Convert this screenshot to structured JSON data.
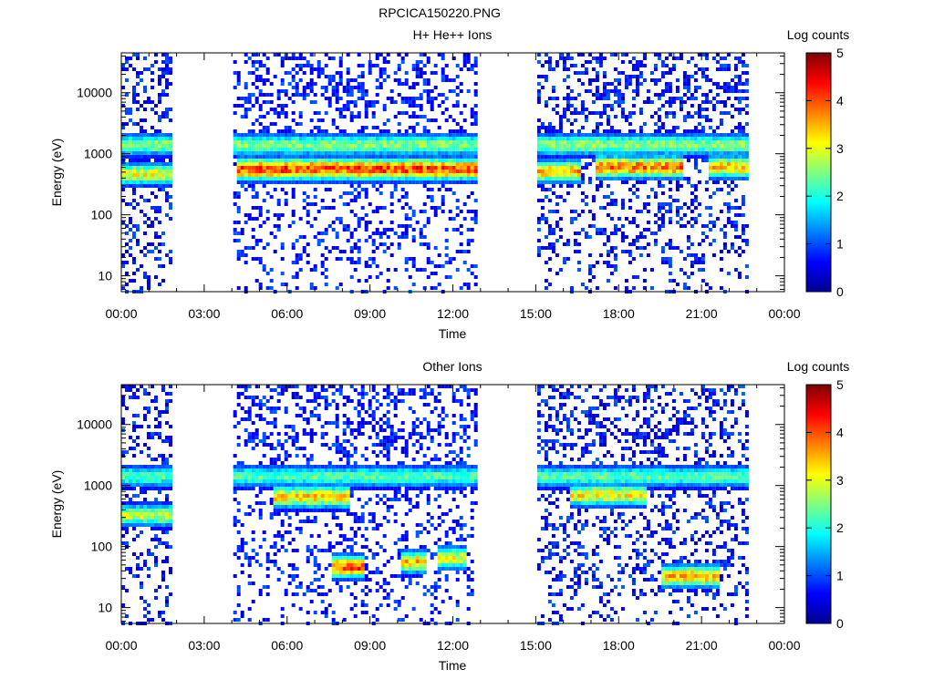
{
  "figure": {
    "filename": "RPCICA150220.PNG",
    "colormap_name": "jet"
  },
  "chart_data": [
    {
      "type": "heatmap",
      "title": "H+ He++ Ions",
      "xlabel": "Time",
      "ylabel": "Energy (eV)",
      "y_scale": "log",
      "ylim": [
        5.5,
        45000
      ],
      "xlim_hours": [
        0,
        24
      ],
      "x_tick_labels": [
        "00:00",
        "03:00",
        "06:00",
        "09:00",
        "12:00",
        "15:00",
        "18:00",
        "21:00",
        "00:00"
      ],
      "y_tick_labels": [
        "10",
        "100",
        "1000",
        "10000"
      ],
      "y_tick_values": [
        10,
        100,
        1000,
        10000
      ],
      "colorbar": {
        "label": "Log counts",
        "range": [
          0,
          5
        ],
        "tick_labels": [
          "0",
          "1",
          "2",
          "3",
          "4",
          "5"
        ]
      },
      "data_intervals_hours": [
        [
          0.0,
          1.75
        ],
        [
          4.05,
          12.8
        ],
        [
          15.05,
          22.6
        ]
      ],
      "features": [
        {
          "name": "band",
          "start_h": 0.0,
          "end_h": 22.6,
          "energy_eV": 1500,
          "peak_log_counts": 2.7
        },
        {
          "name": "band",
          "start_h": 0.0,
          "end_h": 1.75,
          "energy_eV": 500,
          "peak_log_counts": 3.2
        },
        {
          "name": "band",
          "start_h": 4.05,
          "end_h": 12.8,
          "energy_eV": 600,
          "peak_log_counts": 4.3
        },
        {
          "name": "band",
          "start_h": 15.05,
          "end_h": 16.6,
          "energy_eV": 550,
          "peak_log_counts": 3.7
        },
        {
          "name": "band",
          "start_h": 17.1,
          "end_h": 20.2,
          "energy_eV": 650,
          "peak_log_counts": 4.0
        },
        {
          "name": "band",
          "start_h": 21.2,
          "end_h": 22.6,
          "energy_eV": 650,
          "peak_log_counts": 3.6
        }
      ]
    },
    {
      "type": "heatmap",
      "title": "Other Ions",
      "xlabel": "Time",
      "ylabel": "Energy (eV)",
      "y_scale": "log",
      "ylim": [
        5.5,
        45000
      ],
      "xlim_hours": [
        0,
        24
      ],
      "x_tick_labels": [
        "00:00",
        "03:00",
        "06:00",
        "09:00",
        "12:00",
        "15:00",
        "18:00",
        "21:00",
        "00:00"
      ],
      "y_tick_labels": [
        "10",
        "100",
        "1000",
        "10000"
      ],
      "y_tick_values": [
        10,
        100,
        1000,
        10000
      ],
      "colorbar": {
        "label": "Log counts",
        "range": [
          0,
          5
        ],
        "tick_labels": [
          "0",
          "1",
          "2",
          "3",
          "4",
          "5"
        ]
      },
      "data_intervals_hours": [
        [
          0.0,
          1.75
        ],
        [
          4.05,
          12.8
        ],
        [
          15.05,
          22.6
        ]
      ],
      "features": [
        {
          "name": "band",
          "start_h": 0.0,
          "end_h": 22.6,
          "energy_eV": 1500,
          "peak_log_counts": 2.4
        },
        {
          "name": "band",
          "start_h": 0.0,
          "end_h": 1.75,
          "energy_eV": 350,
          "peak_log_counts": 3.0
        },
        {
          "name": "band",
          "start_h": 5.5,
          "end_h": 8.2,
          "energy_eV": 700,
          "peak_log_counts": 3.5
        },
        {
          "name": "band",
          "start_h": 16.2,
          "end_h": 19.0,
          "energy_eV": 750,
          "peak_log_counts": 3.3
        },
        {
          "name": "low-energy",
          "start_h": 7.6,
          "end_h": 8.8,
          "energy_eV": 50,
          "peak_log_counts": 4.2
        },
        {
          "name": "low-energy",
          "start_h": 10.1,
          "end_h": 11.0,
          "energy_eV": 60,
          "peak_log_counts": 3.6
        },
        {
          "name": "low-energy",
          "start_h": 11.4,
          "end_h": 12.4,
          "energy_eV": 70,
          "peak_log_counts": 3.2
        },
        {
          "name": "low-energy",
          "start_h": 19.5,
          "end_h": 21.6,
          "energy_eV": 35,
          "peak_log_counts": 3.6
        }
      ]
    }
  ]
}
